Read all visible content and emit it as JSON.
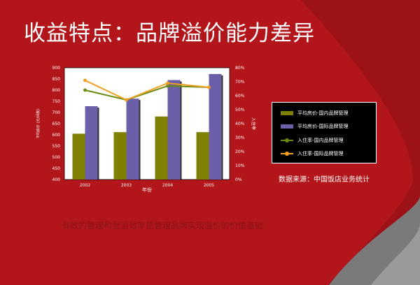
{
  "slide": {
    "title": "收益特点：品牌溢价能力差异",
    "source": "数据来源：中国饭店业务统计",
    "footer": "有效的管理和营运效率是管理品牌实现溢价的价值基础"
  },
  "colors": {
    "background": "#b3161a",
    "bar_domestic": "#808000",
    "bar_international": "#6a5fa8",
    "line_domestic": "#6b8a10",
    "line_international": "#f0a020"
  },
  "chart_data": {
    "type": "bar",
    "categories": [
      "2002",
      "2003",
      "2004",
      "2005"
    ],
    "xlabel": "年份",
    "ylabel": "平均房价 (元/间夜)",
    "y2label": "入住率",
    "ylim": [
      400,
      900
    ],
    "yticks": [
      400,
      450,
      500,
      550,
      600,
      650,
      700,
      750,
      800,
      850,
      900
    ],
    "y2lim": [
      0,
      80
    ],
    "y2ticks": [
      "0%",
      "10%",
      "20%",
      "30%",
      "40%",
      "50%",
      "60%",
      "70%",
      "80%"
    ],
    "series": [
      {
        "name": "平均房价-国内品牌管理",
        "kind": "bar",
        "axis": "left",
        "values": [
          605,
          612,
          682,
          612
        ]
      },
      {
        "name": "平均房价-国际品牌管理",
        "kind": "bar",
        "axis": "left",
        "values": [
          728,
          762,
          845,
          872
        ]
      },
      {
        "name": "入住率-国内品牌管理",
        "kind": "line",
        "axis": "right",
        "values": [
          64,
          57,
          67,
          66
        ]
      },
      {
        "name": "入住率-国际品牌管理",
        "kind": "line",
        "axis": "right",
        "values": [
          71,
          57,
          69,
          66
        ]
      }
    ],
    "legend_position": "right",
    "grid": false
  }
}
